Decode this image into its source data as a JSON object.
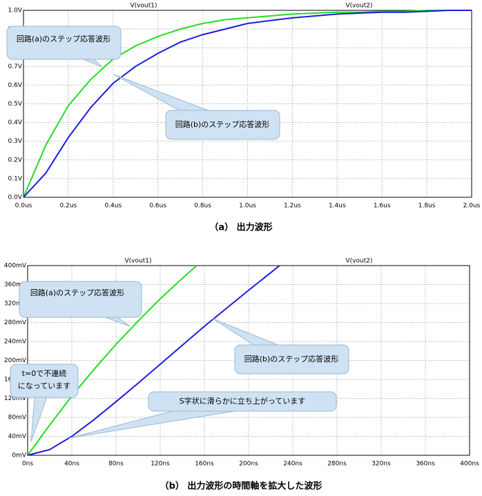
{
  "chart_data": [
    {
      "type": "line",
      "caption": "（a） 出力波形",
      "grid": true,
      "xlim": [
        0,
        2.0
      ],
      "ylim": [
        0,
        1.0
      ],
      "xticks": [
        {
          "value": 0,
          "label": "0.0us"
        },
        {
          "value": 0.2,
          "label": "0.2us"
        },
        {
          "value": 0.4,
          "label": "0.4us"
        },
        {
          "value": 0.6,
          "label": "0.6us"
        },
        {
          "value": 0.8,
          "label": "0.8us"
        },
        {
          "value": 1.0,
          "label": "1.0us"
        },
        {
          "value": 1.2,
          "label": "1.2us"
        },
        {
          "value": 1.4,
          "label": "1.4us"
        },
        {
          "value": 1.6,
          "label": "1.6us"
        },
        {
          "value": 1.8,
          "label": "1.8us"
        },
        {
          "value": 2.0,
          "label": "2.0us"
        }
      ],
      "yticks": [
        {
          "value": 0,
          "label": "0.0V"
        },
        {
          "value": 0.1,
          "label": "0.1V"
        },
        {
          "value": 0.2,
          "label": "0.2V"
        },
        {
          "value": 0.3,
          "label": "0.3V"
        },
        {
          "value": 0.4,
          "label": "0.4V"
        },
        {
          "value": 0.5,
          "label": "0.5V"
        },
        {
          "value": 0.6,
          "label": "0.6V"
        },
        {
          "value": 0.7,
          "label": "0.7V"
        },
        {
          "value": 0.8,
          "label": "0.8V"
        },
        {
          "value": 0.9,
          "label": "0.9V"
        },
        {
          "value": 1.0,
          "label": "1.0V"
        }
      ],
      "series": [
        {
          "name": "V(vout1)",
          "color": "#22dd22",
          "x": [
            0,
            0.1,
            0.2,
            0.3,
            0.4,
            0.5,
            0.6,
            0.7,
            0.8,
            0.9,
            1.0,
            1.1,
            1.2,
            1.3,
            1.4,
            1.5,
            1.6,
            1.7,
            1.8,
            1.9,
            2.0
          ],
          "values": [
            0,
            0.28,
            0.49,
            0.63,
            0.74,
            0.81,
            0.86,
            0.9,
            0.93,
            0.95,
            0.96,
            0.97,
            0.98,
            0.985,
            0.99,
            0.99,
            0.995,
            0.995,
            1.0,
            1.0,
            1.0
          ]
        },
        {
          "name": "V(vout2)",
          "color": "#1a1ae0",
          "x": [
            0,
            0.1,
            0.2,
            0.3,
            0.4,
            0.5,
            0.6,
            0.7,
            0.8,
            0.9,
            1.0,
            1.1,
            1.2,
            1.3,
            1.4,
            1.5,
            1.6,
            1.7,
            1.8,
            1.9,
            2.0
          ],
          "values": [
            0,
            0.13,
            0.32,
            0.48,
            0.61,
            0.7,
            0.77,
            0.83,
            0.87,
            0.9,
            0.93,
            0.945,
            0.96,
            0.97,
            0.98,
            0.985,
            0.99,
            0.99,
            0.995,
            1.0,
            1.0
          ]
        }
      ],
      "annotations": [
        "回路(a)のステップ応答波形",
        "回路(b)のステップ応答波形"
      ]
    },
    {
      "type": "line",
      "caption": "（b） 出力波形の時間軸を拡大した波形",
      "grid": true,
      "xlim": [
        0,
        400
      ],
      "ylim": [
        0,
        400
      ],
      "xticks": [
        {
          "value": 0,
          "label": "0ns"
        },
        {
          "value": 40,
          "label": "40ns"
        },
        {
          "value": 80,
          "label": "80ns"
        },
        {
          "value": 120,
          "label": "120ns"
        },
        {
          "value": 160,
          "label": "160ns"
        },
        {
          "value": 200,
          "label": "200ns"
        },
        {
          "value": 240,
          "label": "240ns"
        },
        {
          "value": 280,
          "label": "280ns"
        },
        {
          "value": 320,
          "label": "320ns"
        },
        {
          "value": 360,
          "label": "360ns"
        },
        {
          "value": 400,
          "label": "400ns"
        }
      ],
      "yticks": [
        {
          "value": 0,
          "label": "0mV"
        },
        {
          "value": 40,
          "label": "40mV"
        },
        {
          "value": 80,
          "label": "80mV"
        },
        {
          "value": 120,
          "label": "120mV"
        },
        {
          "value": 160,
          "label": "160mV"
        },
        {
          "value": 200,
          "label": "200mV"
        },
        {
          "value": 240,
          "label": "240mV"
        },
        {
          "value": 280,
          "label": "280mV"
        },
        {
          "value": 320,
          "label": "320mV"
        },
        {
          "value": 360,
          "label": "360mV"
        },
        {
          "value": 400,
          "label": "400mV"
        }
      ],
      "series": [
        {
          "name": "V(vout1)",
          "color": "#22dd22",
          "x": [
            0,
            20,
            40,
            60,
            80,
            100,
            120,
            140,
            153
          ],
          "values": [
            0,
            64,
            125,
            181,
            234,
            283,
            330,
            373,
            400
          ]
        },
        {
          "name": "V(vout2)",
          "color": "#1a1ae0",
          "x": [
            0,
            20,
            40,
            60,
            80,
            100,
            120,
            140,
            160,
            180,
            200,
            220,
            228
          ],
          "values": [
            0,
            12,
            40,
            75,
            113,
            152,
            192,
            232,
            272,
            310,
            348,
            385,
            400
          ]
        }
      ],
      "annotations": [
        "回路(a)のステップ応答波形",
        "回路(b)のステップ応答波形",
        "t=0で不連続",
        "になっています",
        "S字状に滑らかに立ち上がっています"
      ]
    }
  ]
}
